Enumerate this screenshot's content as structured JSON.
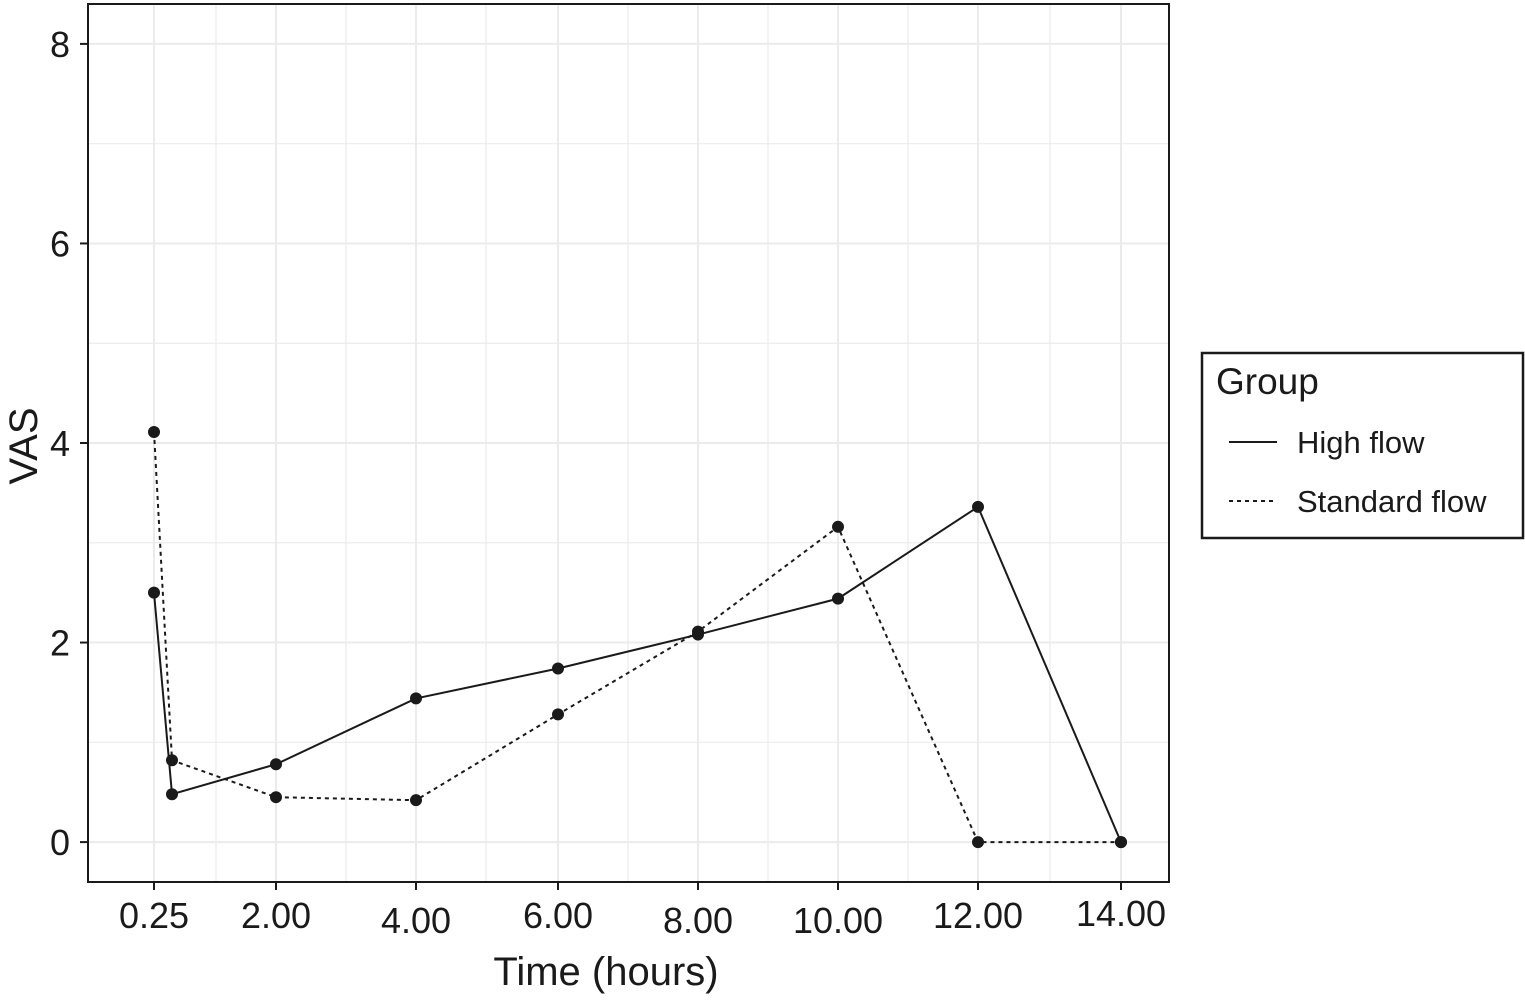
{
  "chart_data": {
    "type": "line",
    "title": "",
    "xlabel": "Time (hours)",
    "ylabel": "VAS",
    "ylim": [
      -0.4,
      8.4
    ],
    "y_ticks": [
      0,
      2,
      4,
      6,
      8
    ],
    "y_tick_labels": [
      "0",
      "2",
      "4",
      "6",
      "8"
    ],
    "x_tick_labels": [
      "0.25",
      "2.00",
      "4.00",
      "6.00",
      "8.00",
      "10.00",
      "12.00",
      "14.00"
    ],
    "grid": true,
    "legend": {
      "title": "Group",
      "placement": "right",
      "entries": [
        "High flow",
        "Standard flow"
      ]
    },
    "series": [
      {
        "name": "High flow",
        "style": "solid",
        "points": [
          {
            "x": "0.25",
            "y": 2.5
          },
          {
            "x": "0.5",
            "y": 0.48
          },
          {
            "x": "2.00",
            "y": 0.78
          },
          {
            "x": "4.00",
            "y": 1.44
          },
          {
            "x": "6.00",
            "y": 1.74
          },
          {
            "x": "8.00",
            "y": 2.08
          },
          {
            "x": "10.00",
            "y": 2.44
          },
          {
            "x": "12.00",
            "y": 3.36
          },
          {
            "x": "14.00",
            "y": 0.0
          }
        ]
      },
      {
        "name": "Standard flow",
        "style": "dashed",
        "points": [
          {
            "x": "0.25",
            "y": 4.11
          },
          {
            "x": "0.5",
            "y": 0.82
          },
          {
            "x": "2.00",
            "y": 0.45
          },
          {
            "x": "4.00",
            "y": 0.42
          },
          {
            "x": "6.00",
            "y": 1.28
          },
          {
            "x": "8.00",
            "y": 2.11
          },
          {
            "x": "10.00",
            "y": 3.16
          },
          {
            "x": "12.00",
            "y": 0.0
          },
          {
            "x": "14.00",
            "y": 0.0
          }
        ]
      }
    ],
    "colors": {
      "line": "#1a1a1a",
      "grid": "#ebebeb",
      "frame": "#1a1a1a"
    }
  }
}
